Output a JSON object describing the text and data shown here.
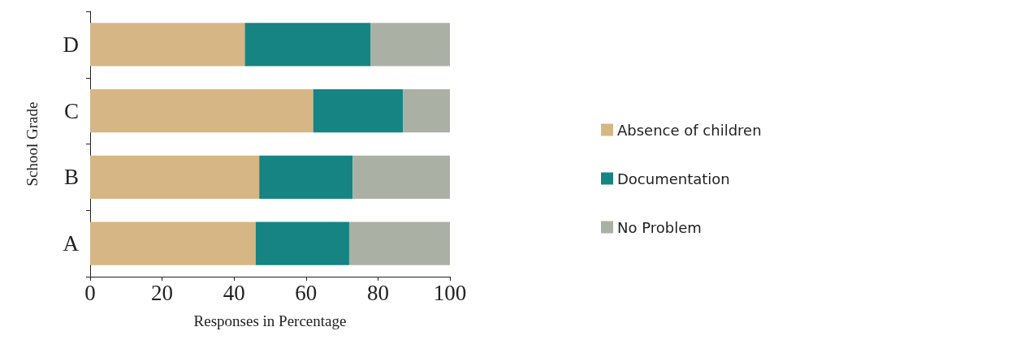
{
  "chart_data": {
    "type": "bar",
    "orientation": "horizontal",
    "stacked": true,
    "xlabel": "Responses in Percentage",
    "ylabel": "School Grade",
    "categories": [
      "D",
      "C",
      "B",
      "A"
    ],
    "series": [
      {
        "name": "Absence of children",
        "color": "#d6b684",
        "values": [
          43,
          62,
          47,
          46
        ]
      },
      {
        "name": "Documentation",
        "color": "#158482",
        "values": [
          35,
          25,
          26,
          26
        ]
      },
      {
        "name": "No Problem",
        "color": "#abb0a4",
        "values": [
          22,
          13,
          27,
          28
        ]
      }
    ],
    "xlim": [
      0,
      100
    ],
    "xticks": [
      0,
      20,
      40,
      60,
      80,
      100
    ],
    "grid": false,
    "legend": "right"
  }
}
